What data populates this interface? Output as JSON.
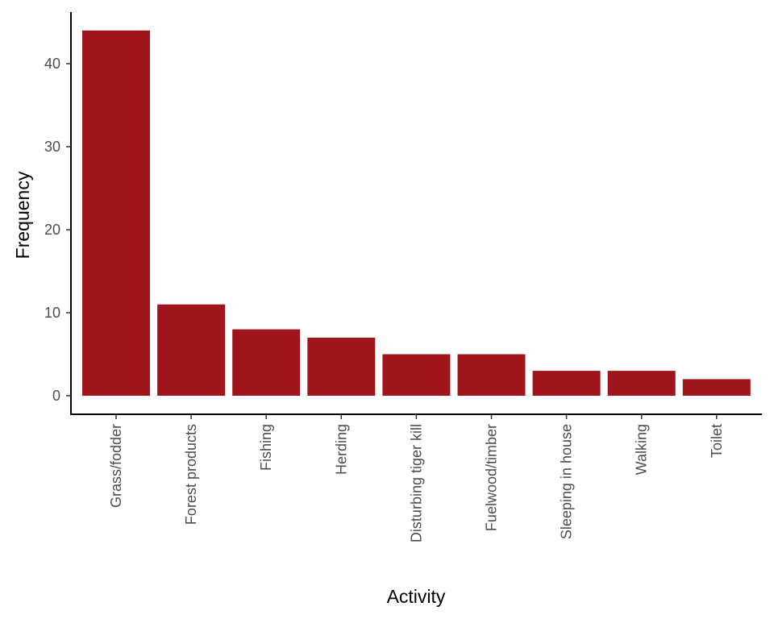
{
  "chart_data": {
    "type": "bar",
    "title": "",
    "xlabel": "Activity",
    "ylabel": "Frequency",
    "categories": [
      "Grass/fodder",
      "Forest products",
      "Fishing",
      "Herding",
      "Disturbing tiger kill",
      "Fuelwood/timber",
      "Sleeping in house",
      "Walking",
      "Toilet"
    ],
    "values": [
      44,
      11,
      8,
      7,
      5,
      5,
      3,
      3,
      2
    ],
    "ylim": [
      0,
      46.2
    ],
    "yticks": [
      0,
      10,
      20,
      30,
      40
    ],
    "grid": false,
    "legend": "none",
    "bar_color": "#A0141C"
  }
}
